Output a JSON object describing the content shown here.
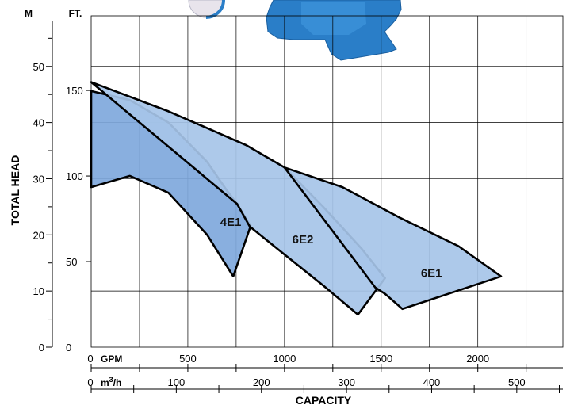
{
  "chart_data": {
    "type": "area",
    "title": "",
    "xlabel": "CAPACITY",
    "ylabel": "TOTAL HEAD",
    "x_primary": {
      "unit": "GPM",
      "zero_label": "0",
      "ticks": [
        500,
        1000,
        1500,
        2000
      ],
      "tick_labels": [
        "500",
        "1000",
        "1500",
        "2000"
      ],
      "range": [
        0,
        2440
      ]
    },
    "x_secondary": {
      "unit_text": "m",
      "unit_sup": "3",
      "unit_tail": "/h",
      "zero_label": "0",
      "ticks": [
        100,
        200,
        300,
        400,
        500
      ],
      "tick_labels": [
        "100",
        "200",
        "300",
        "400",
        "500"
      ]
    },
    "y_primary": {
      "unit": "M",
      "ticks": [
        0,
        10,
        20,
        30,
        40,
        50
      ],
      "tick_labels": [
        "0",
        "10",
        "20",
        "30",
        "40",
        "50"
      ],
      "range": [
        0,
        59
      ]
    },
    "y_secondary": {
      "unit": "FT.",
      "zero_label": "0",
      "ticks": [
        50,
        100,
        150
      ],
      "tick_labels": [
        "50",
        "100",
        "150"
      ]
    },
    "grid": true,
    "series": [
      {
        "name": "4E1",
        "color": "#7fa8dc",
        "upper": [
          [
            0,
            45.6
          ],
          [
            200,
            44.0
          ],
          [
            400,
            40.0
          ],
          [
            600,
            33.0
          ],
          [
            700,
            28.0
          ],
          [
            755,
            25.5
          ]
        ],
        "right_edge": [
          [
            755,
            25.5
          ],
          [
            825,
            21.6
          ],
          [
            735,
            12.6
          ]
        ],
        "lower": [
          [
            735,
            12.6
          ],
          [
            600,
            20.0
          ],
          [
            400,
            27.5
          ],
          [
            200,
            30.5
          ],
          [
            50,
            29.0
          ],
          [
            0,
            28.5
          ]
        ]
      },
      {
        "name": "6E2",
        "color": "#a6c4e8",
        "upper": [
          [
            0,
            47.2
          ],
          [
            400,
            42.0
          ],
          [
            800,
            36.0
          ],
          [
            1000,
            32.0
          ],
          [
            1200,
            25.0
          ],
          [
            1400,
            17.5
          ],
          [
            1520,
            12.3
          ]
        ],
        "right_edge": [
          [
            1520,
            12.3
          ],
          [
            1380,
            5.8
          ]
        ],
        "lower": [
          [
            1380,
            5.8
          ],
          [
            1200,
            11.0
          ],
          [
            1000,
            16.5
          ],
          [
            820,
            21.5
          ],
          [
            755,
            25.5
          ]
        ]
      },
      {
        "name": "6E1",
        "color": "#a6c4e8",
        "upper": [
          [
            1000,
            32.0
          ],
          [
            1300,
            28.5
          ],
          [
            1600,
            23.0
          ],
          [
            1900,
            18.0
          ],
          [
            2120,
            12.6
          ]
        ],
        "right_edge": [
          [
            2120,
            12.6
          ],
          [
            1610,
            6.8
          ]
        ],
        "lower": [
          [
            1610,
            6.8
          ],
          [
            1520,
            9.5
          ],
          [
            1470,
            10.6
          ]
        ]
      }
    ],
    "annotations": [
      "4E1",
      "6E2",
      "6E1"
    ]
  },
  "colors": {
    "grid": "#000000",
    "region_stroke": "#000000",
    "fill_4e1": "#7fa8dc",
    "fill_6e": "#a6c4e8",
    "pump_body": "#2a7ec8",
    "gauge_face": "#e8e4ec"
  },
  "images": {
    "pump_photo": "blue centrifugal pump-motor partially visible at top of chart"
  }
}
